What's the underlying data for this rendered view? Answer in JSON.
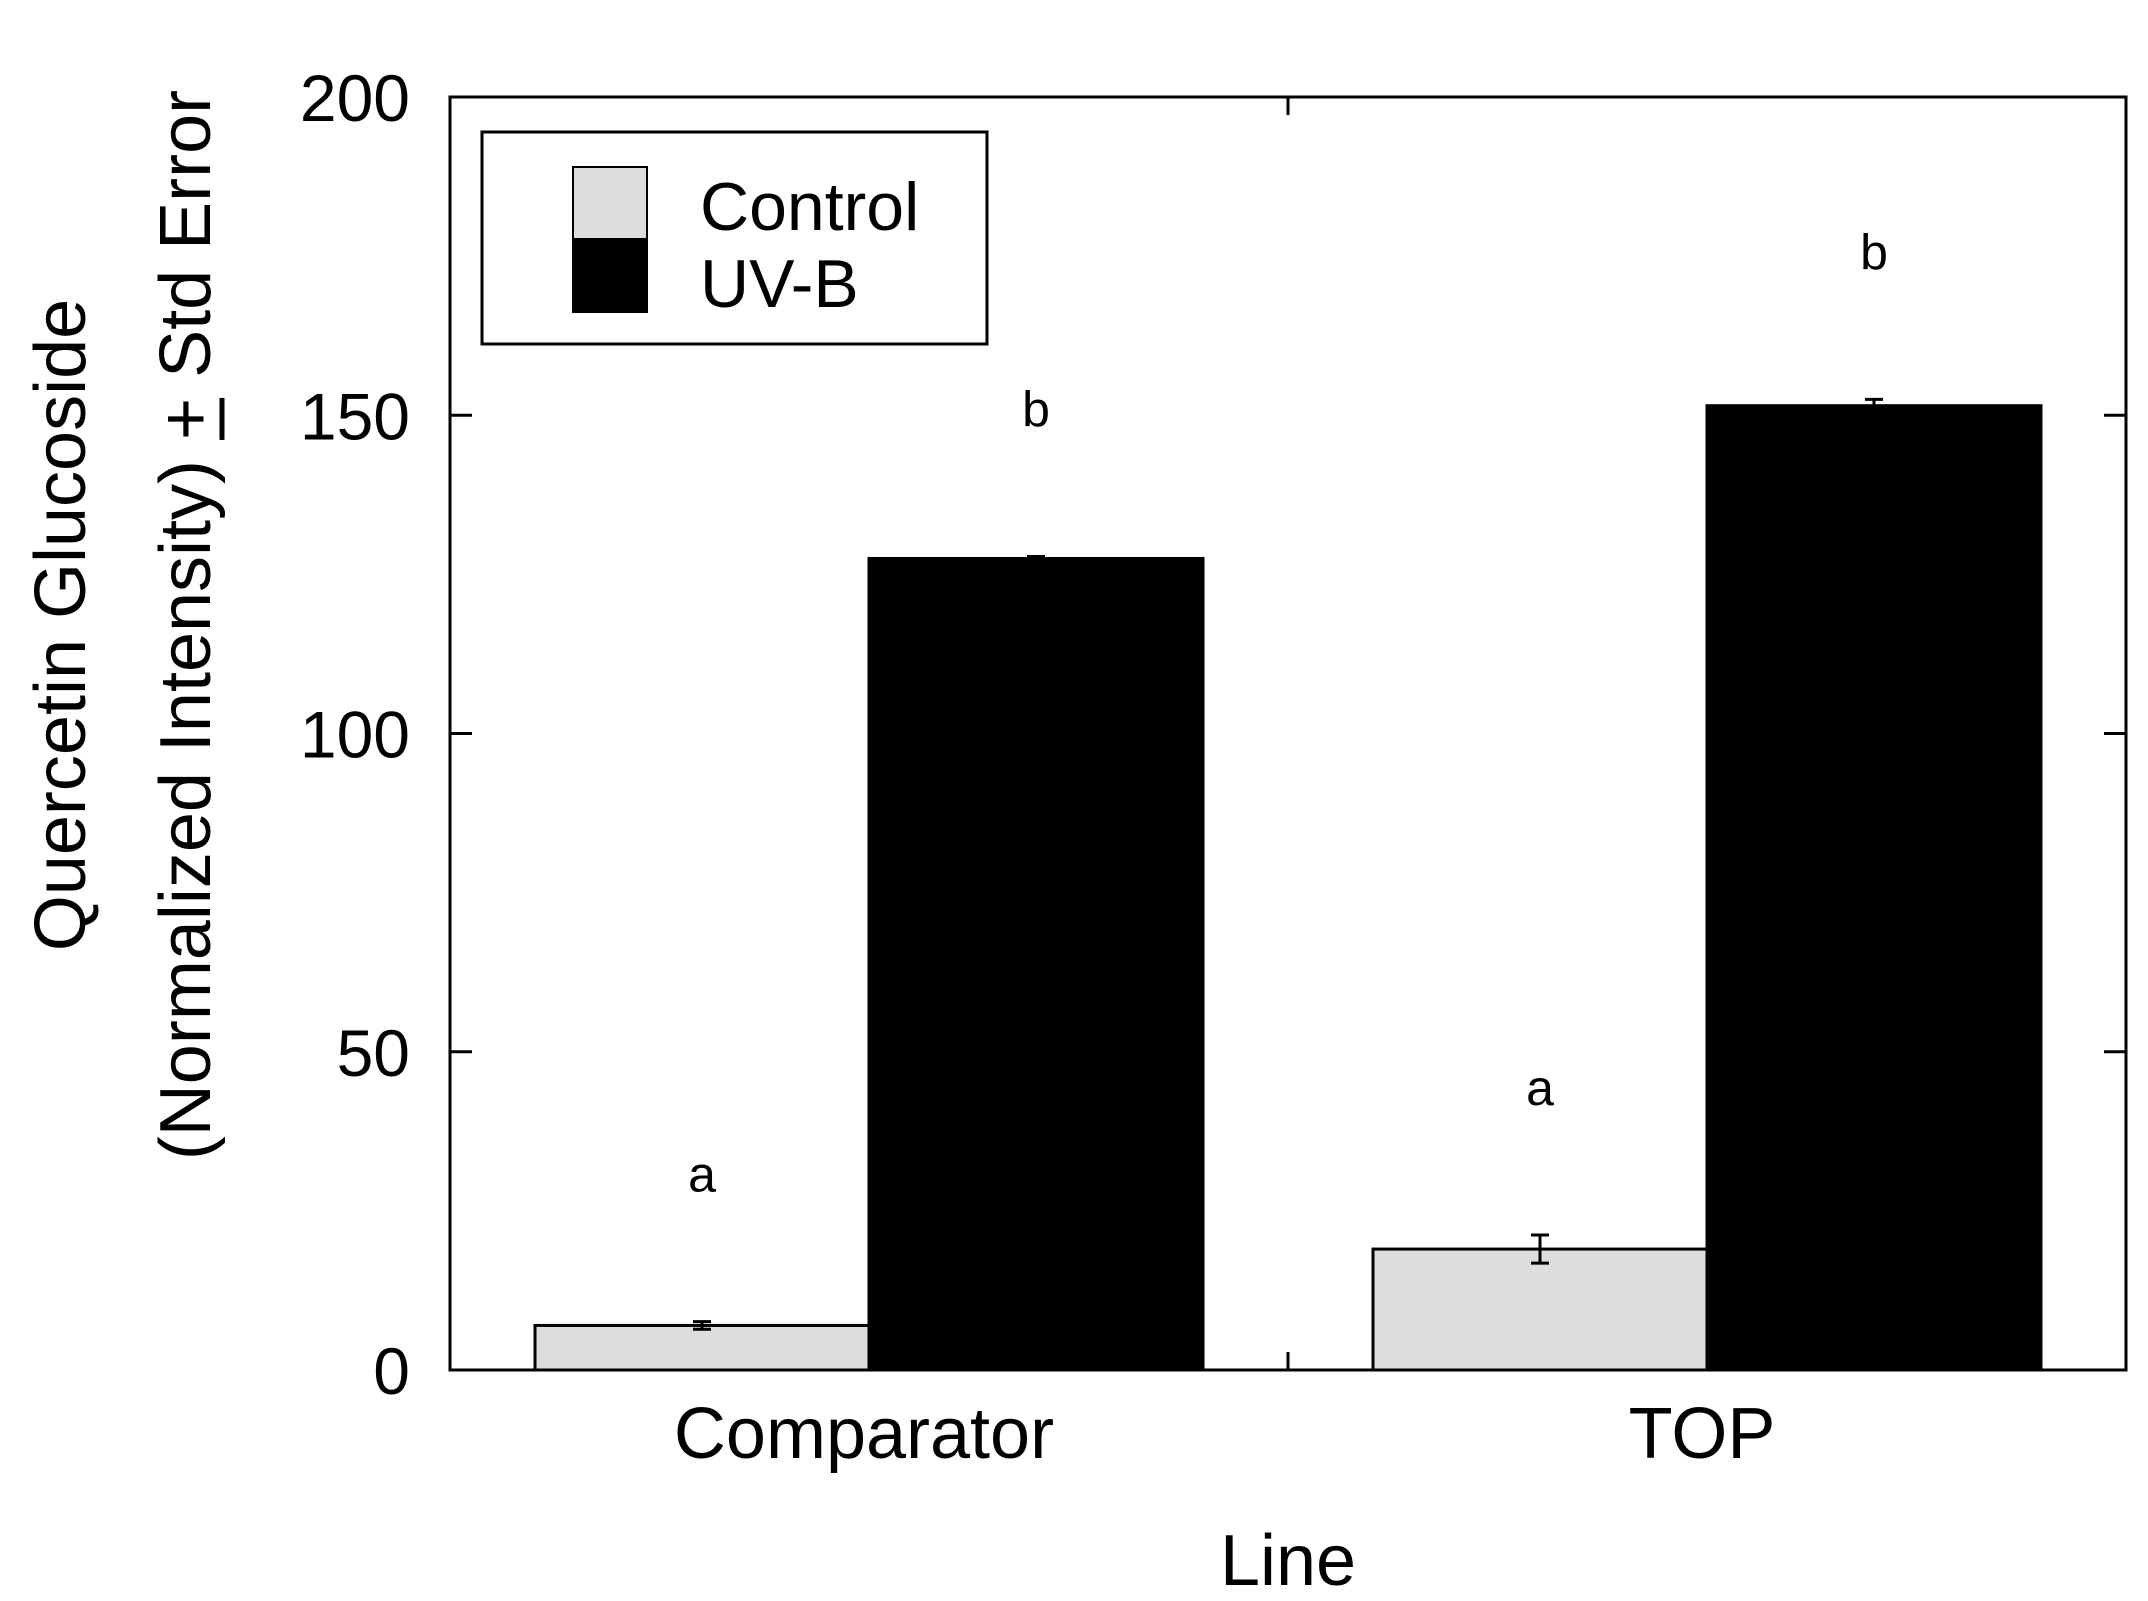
{
  "chart_data": {
    "type": "bar",
    "categories": [
      "Comparator",
      "TOP"
    ],
    "series": [
      {
        "name": "Control",
        "color": "#dcdddc",
        "values": [
          7,
          19
        ],
        "errors": [
          0.6,
          2.2
        ],
        "significance": [
          "a",
          "a"
        ]
      },
      {
        "name": "UV-B",
        "color": "#000000",
        "values": [
          127.5,
          151.5
        ],
        "errors": [
          0.3,
          1.0
        ],
        "significance": [
          "b",
          "b"
        ]
      }
    ],
    "title": "",
    "xlabel": "Line",
    "ylabel_line1": "Quercetin Glucoside",
    "ylabel_line2": "(Normalized Intensity) + Std Error",
    "ylim": [
      0,
      200
    ],
    "yticks": [
      0,
      50,
      100,
      150,
      200
    ],
    "ytick_labels": [
      "0",
      "50",
      "100",
      "150",
      "200"
    ],
    "grid": false,
    "legend_position": "top-left"
  }
}
